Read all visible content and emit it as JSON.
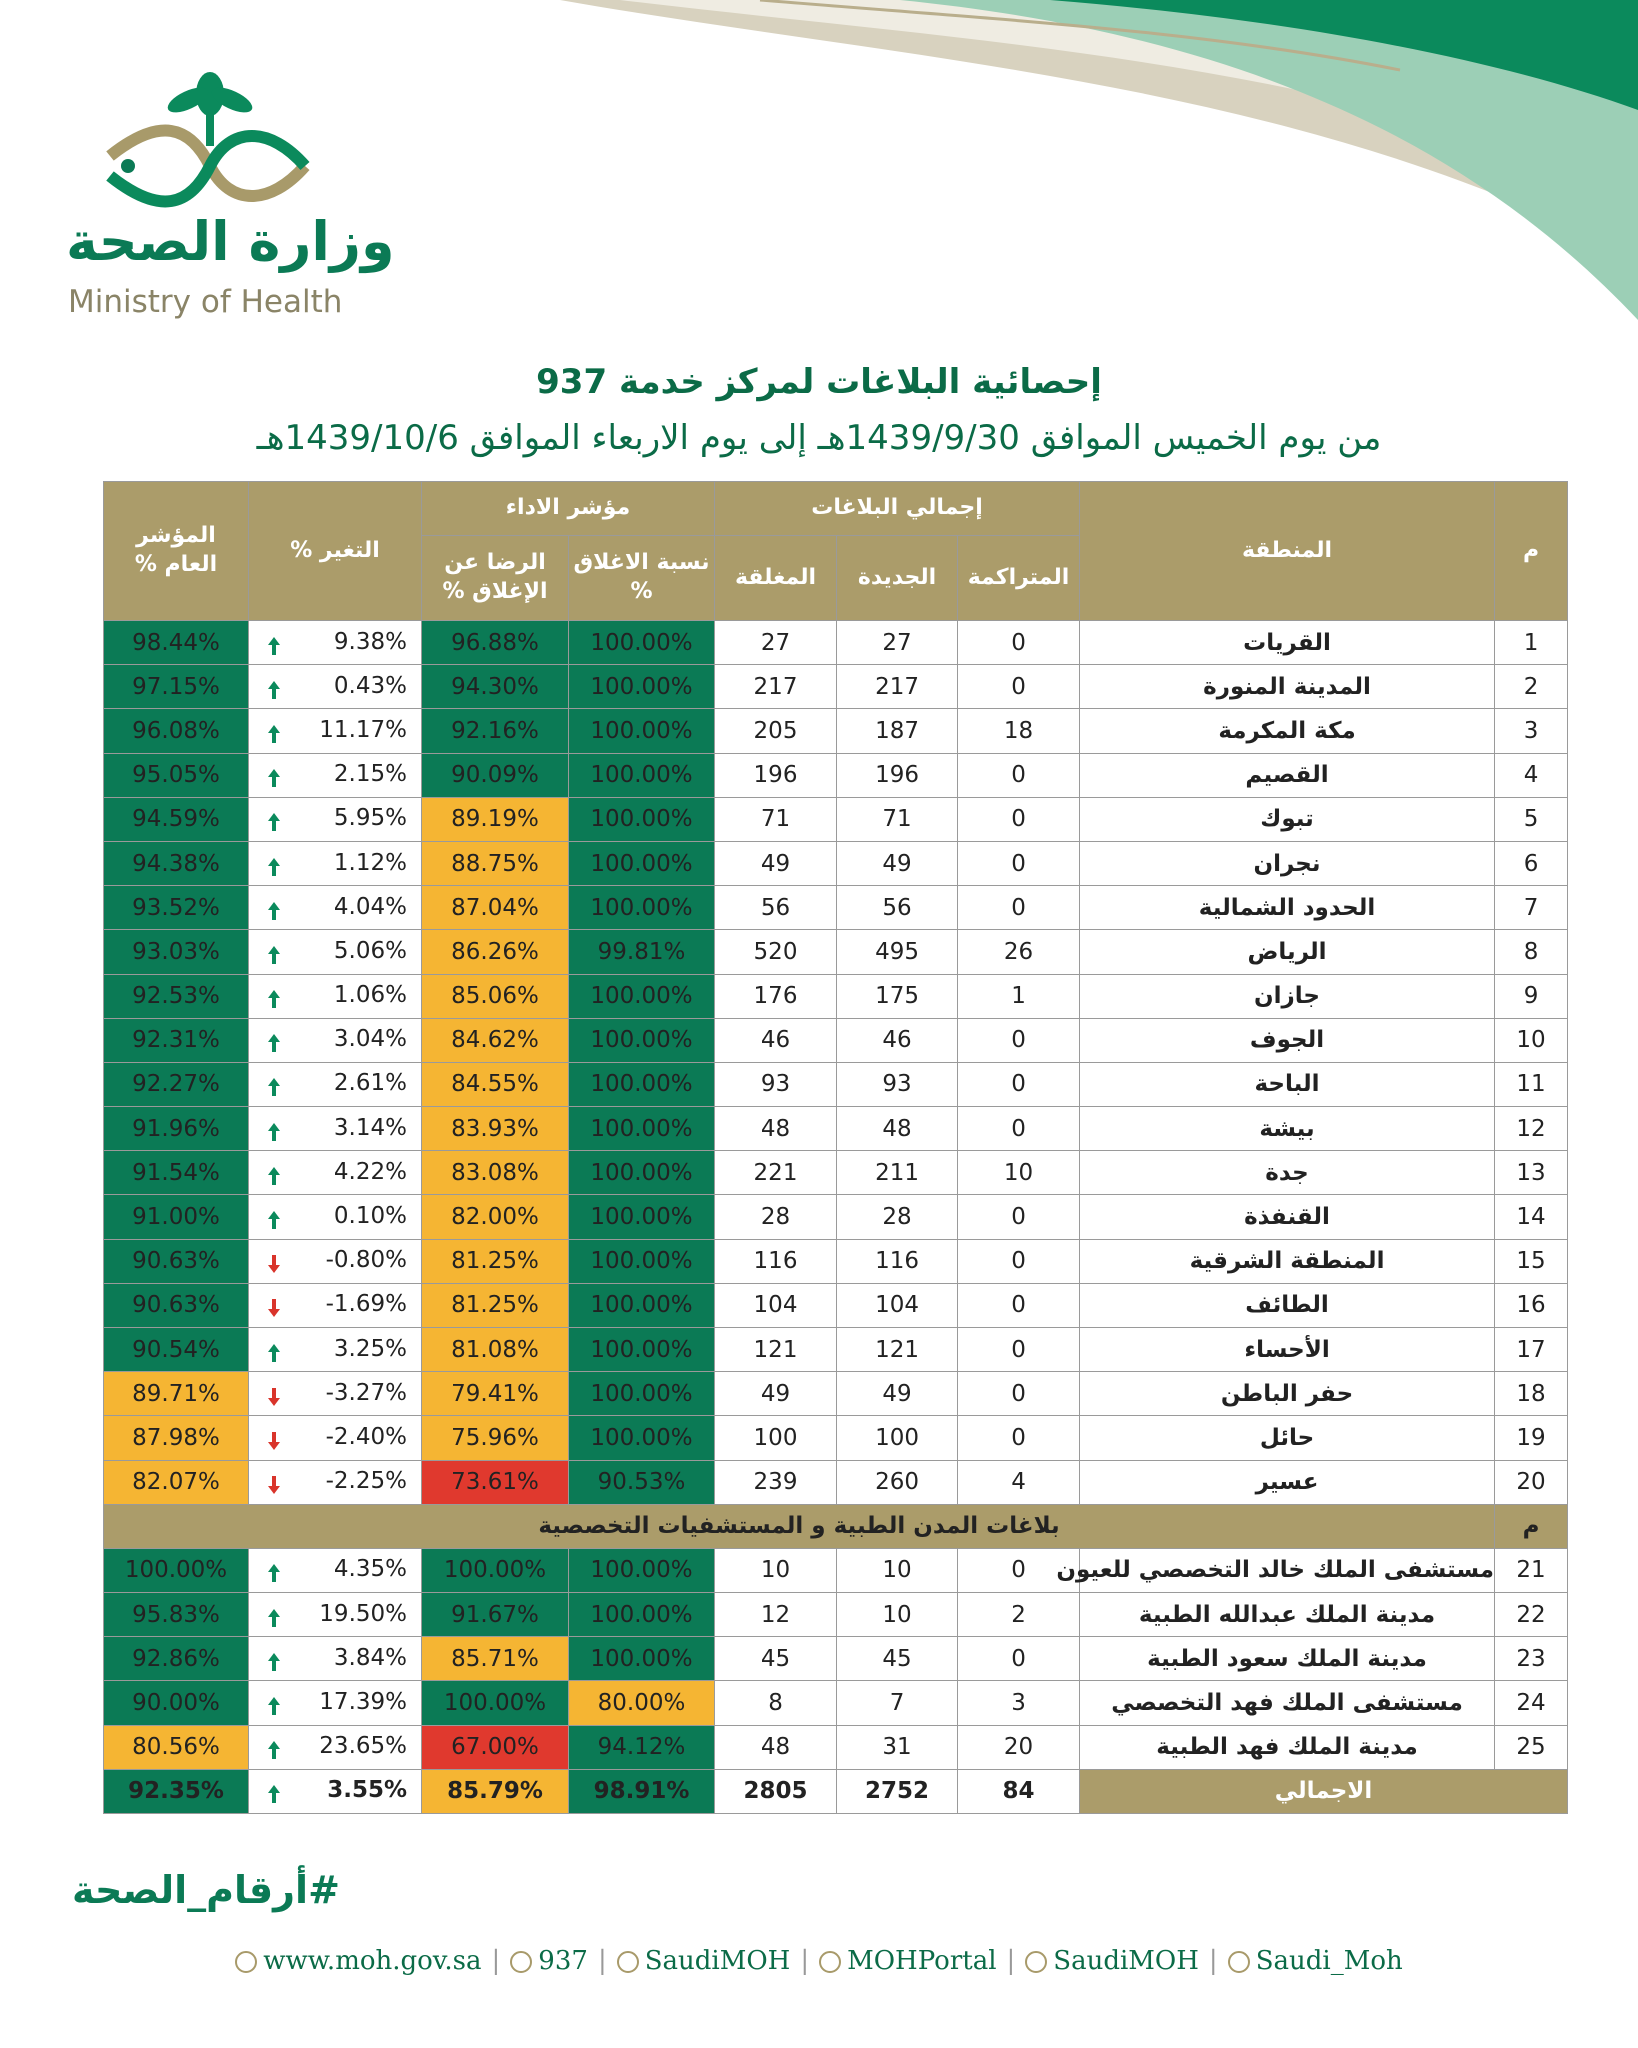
{
  "header": {
    "logo_ar": "وزارة الصحة",
    "logo_en": "Ministry of Health",
    "title": "إحصائية البلاغات لمركز خدمة 937",
    "subtitle": "من يوم الخميس الموافق 1439/9/30هـ إلى يوم الاربعاء الموافق 1439/10/6هـ"
  },
  "table": {
    "headers": {
      "index": "م",
      "region": "المنطقة",
      "totals": "إجمالي البلاغات",
      "accumulated": "المتراكمة",
      "new": "الجديدة",
      "closed": "المغلقة",
      "performance": "مؤشر الاداء",
      "closure": "نسبة الاغلاق %",
      "satisfaction": "الرضا عن الإغلاق %",
      "change": "التغير %",
      "overall": "المؤشر العام %"
    },
    "rows": [
      {
        "cells": [
          "1",
          "القريات",
          0,
          27,
          27,
          "100.00%",
          "96.88%",
          "9.38%",
          "98.44%"
        ],
        "fills": [
          "#0b7a55",
          "#0b7a55",
          "#0b7a55"
        ]
      },
      {
        "cells": [
          "2",
          "المدينة المنورة",
          0,
          217,
          217,
          "100.00%",
          "94.30%",
          "0.43%",
          "97.15%"
        ],
        "fills": [
          "#0b7a55",
          "#0b7a55",
          "#0b7a55"
        ]
      },
      {
        "cells": [
          "3",
          "مكة المكرمة",
          18,
          187,
          205,
          "100.00%",
          "92.16%",
          "11.17%",
          "96.08%"
        ],
        "fills": [
          "#0b7a55",
          "#0b7a55",
          "#0b7a55"
        ]
      },
      {
        "cells": [
          "4",
          "القصيم",
          0,
          196,
          196,
          "100.00%",
          "90.09%",
          "2.15%",
          "95.05%"
        ],
        "fills": [
          "#0b7a55",
          "#0b7a55",
          "#0b7a55"
        ]
      },
      {
        "cells": [
          "5",
          "تبوك",
          0,
          71,
          71,
          "100.00%",
          "89.19%",
          "5.95%",
          "94.59%"
        ],
        "fills": [
          "#0b7a55",
          "#f5b533",
          "#0b7a55"
        ]
      },
      {
        "cells": [
          "6",
          "نجران",
          0,
          49,
          49,
          "100.00%",
          "88.75%",
          "1.12%",
          "94.38%"
        ],
        "fills": [
          "#0b7a55",
          "#f5b533",
          "#0b7a55"
        ]
      },
      {
        "cells": [
          "7",
          "الحدود الشمالية",
          0,
          56,
          56,
          "100.00%",
          "87.04%",
          "4.04%",
          "93.52%"
        ],
        "fills": [
          "#0b7a55",
          "#f5b533",
          "#0b7a55"
        ]
      },
      {
        "cells": [
          "8",
          "الرياض",
          26,
          495,
          520,
          "99.81%",
          "86.26%",
          "5.06%",
          "93.03%"
        ],
        "fills": [
          "#0b7a55",
          "#f5b533",
          "#0b7a55"
        ]
      },
      {
        "cells": [
          "9",
          "جازان",
          1,
          175,
          176,
          "100.00%",
          "85.06%",
          "1.06%",
          "92.53%"
        ],
        "fills": [
          "#0b7a55",
          "#f5b533",
          "#0b7a55"
        ]
      },
      {
        "cells": [
          "10",
          "الجوف",
          0,
          46,
          46,
          "100.00%",
          "84.62%",
          "3.04%",
          "92.31%"
        ],
        "fills": [
          "#0b7a55",
          "#f5b533",
          "#0b7a55"
        ]
      },
      {
        "cells": [
          "11",
          "الباحة",
          0,
          93,
          93,
          "100.00%",
          "84.55%",
          "2.61%",
          "92.27%"
        ],
        "fills": [
          "#0b7a55",
          "#f5b533",
          "#0b7a55"
        ]
      },
      {
        "cells": [
          "12",
          "بيشة",
          0,
          48,
          48,
          "100.00%",
          "83.93%",
          "3.14%",
          "91.96%"
        ],
        "fills": [
          "#0b7a55",
          "#f5b533",
          "#0b7a55"
        ]
      },
      {
        "cells": [
          "13",
          "جدة",
          10,
          211,
          221,
          "100.00%",
          "83.08%",
          "4.22%",
          "91.54%"
        ],
        "fills": [
          "#0b7a55",
          "#f5b533",
          "#0b7a55"
        ]
      },
      {
        "cells": [
          "14",
          "القنفذة",
          0,
          28,
          28,
          "100.00%",
          "82.00%",
          "0.10%",
          "91.00%"
        ],
        "fills": [
          "#0b7a55",
          "#f5b533",
          "#0b7a55"
        ]
      },
      {
        "cells": [
          "15",
          "المنطقة الشرقية",
          0,
          116,
          116,
          "100.00%",
          "81.25%",
          "-0.80%",
          "90.63%"
        ],
        "fills": [
          "#0b7a55",
          "#f5b533",
          "#0b7a55"
        ]
      },
      {
        "cells": [
          "16",
          "الطائف",
          0,
          104,
          104,
          "100.00%",
          "81.25%",
          "-1.69%",
          "90.63%"
        ],
        "fills": [
          "#0b7a55",
          "#f5b533",
          "#0b7a55"
        ]
      },
      {
        "cells": [
          "17",
          "الأحساء",
          0,
          121,
          121,
          "100.00%",
          "81.08%",
          "3.25%",
          "90.54%"
        ],
        "fills": [
          "#0b7a55",
          "#f5b533",
          "#0b7a55"
        ]
      },
      {
        "cells": [
          "18",
          "حفر الباطن",
          0,
          49,
          49,
          "100.00%",
          "79.41%",
          "-3.27%",
          "89.71%"
        ],
        "fills": [
          "#0b7a55",
          "#f5b533",
          "#f5b533"
        ]
      },
      {
        "cells": [
          "19",
          "حائل",
          0,
          100,
          100,
          "100.00%",
          "75.96%",
          "-2.40%",
          "87.98%"
        ],
        "fills": [
          "#0b7a55",
          "#f5b533",
          "#f5b533"
        ]
      },
      {
        "cells": [
          "20",
          "عسير",
          4,
          260,
          239,
          "90.53%",
          "73.61%",
          "-2.25%",
          "82.07%"
        ],
        "fills": [
          "#0b7a55",
          "#e0392e",
          "#f5b533"
        ]
      }
    ],
    "section": {
      "index": "م",
      "label": "بلاغات المدن الطبية و المستشفيات التخصصية"
    },
    "section_rows": [
      {
        "cells": [
          "21",
          "مستشفى الملك خالد التخصصي للعيون",
          0,
          10,
          10,
          "100.00%",
          "100.00%",
          "4.35%",
          "100.00%"
        ],
        "fills": [
          "#0b7a55",
          "#0b7a55",
          "#0b7a55"
        ]
      },
      {
        "cells": [
          "22",
          "مدينة الملك عبدالله الطبية",
          2,
          10,
          12,
          "100.00%",
          "91.67%",
          "19.50%",
          "95.83%"
        ],
        "fills": [
          "#0b7a55",
          "#0b7a55",
          "#0b7a55"
        ]
      },
      {
        "cells": [
          "23",
          "مدينة الملك سعود الطبية",
          0,
          45,
          45,
          "100.00%",
          "85.71%",
          "3.84%",
          "92.86%"
        ],
        "fills": [
          "#0b7a55",
          "#f5b533",
          "#0b7a55"
        ]
      },
      {
        "cells": [
          "24",
          "مستشفى الملك فهد التخصصي",
          3,
          7,
          8,
          "80.00%",
          "100.00%",
          "17.39%",
          "90.00%"
        ],
        "fills": [
          "#f5b533",
          "#0b7a55",
          "#0b7a55"
        ]
      },
      {
        "cells": [
          "25",
          "مدينة الملك فهد الطبية",
          20,
          31,
          48,
          "94.12%",
          "67.00%",
          "23.65%",
          "80.56%"
        ],
        "fills": [
          "#0b7a55",
          "#e0392e",
          "#f5b533"
        ]
      }
    ],
    "total": {
      "cells": [
        "الاجمالي",
        84,
        2752,
        2805,
        "98.91%",
        "85.79%",
        "3.55%",
        "92.35%"
      ],
      "fills": [
        "#0b7a55",
        "#f5b533",
        "#0b7a55"
      ]
    }
  },
  "footer": {
    "hashtag": "#أرقام_الصحة",
    "links": [
      "www.moh.gov.sa",
      "937",
      "SaudiMOH",
      "MOHPortal",
      "SaudiMOH",
      "Saudi_Moh"
    ]
  }
}
